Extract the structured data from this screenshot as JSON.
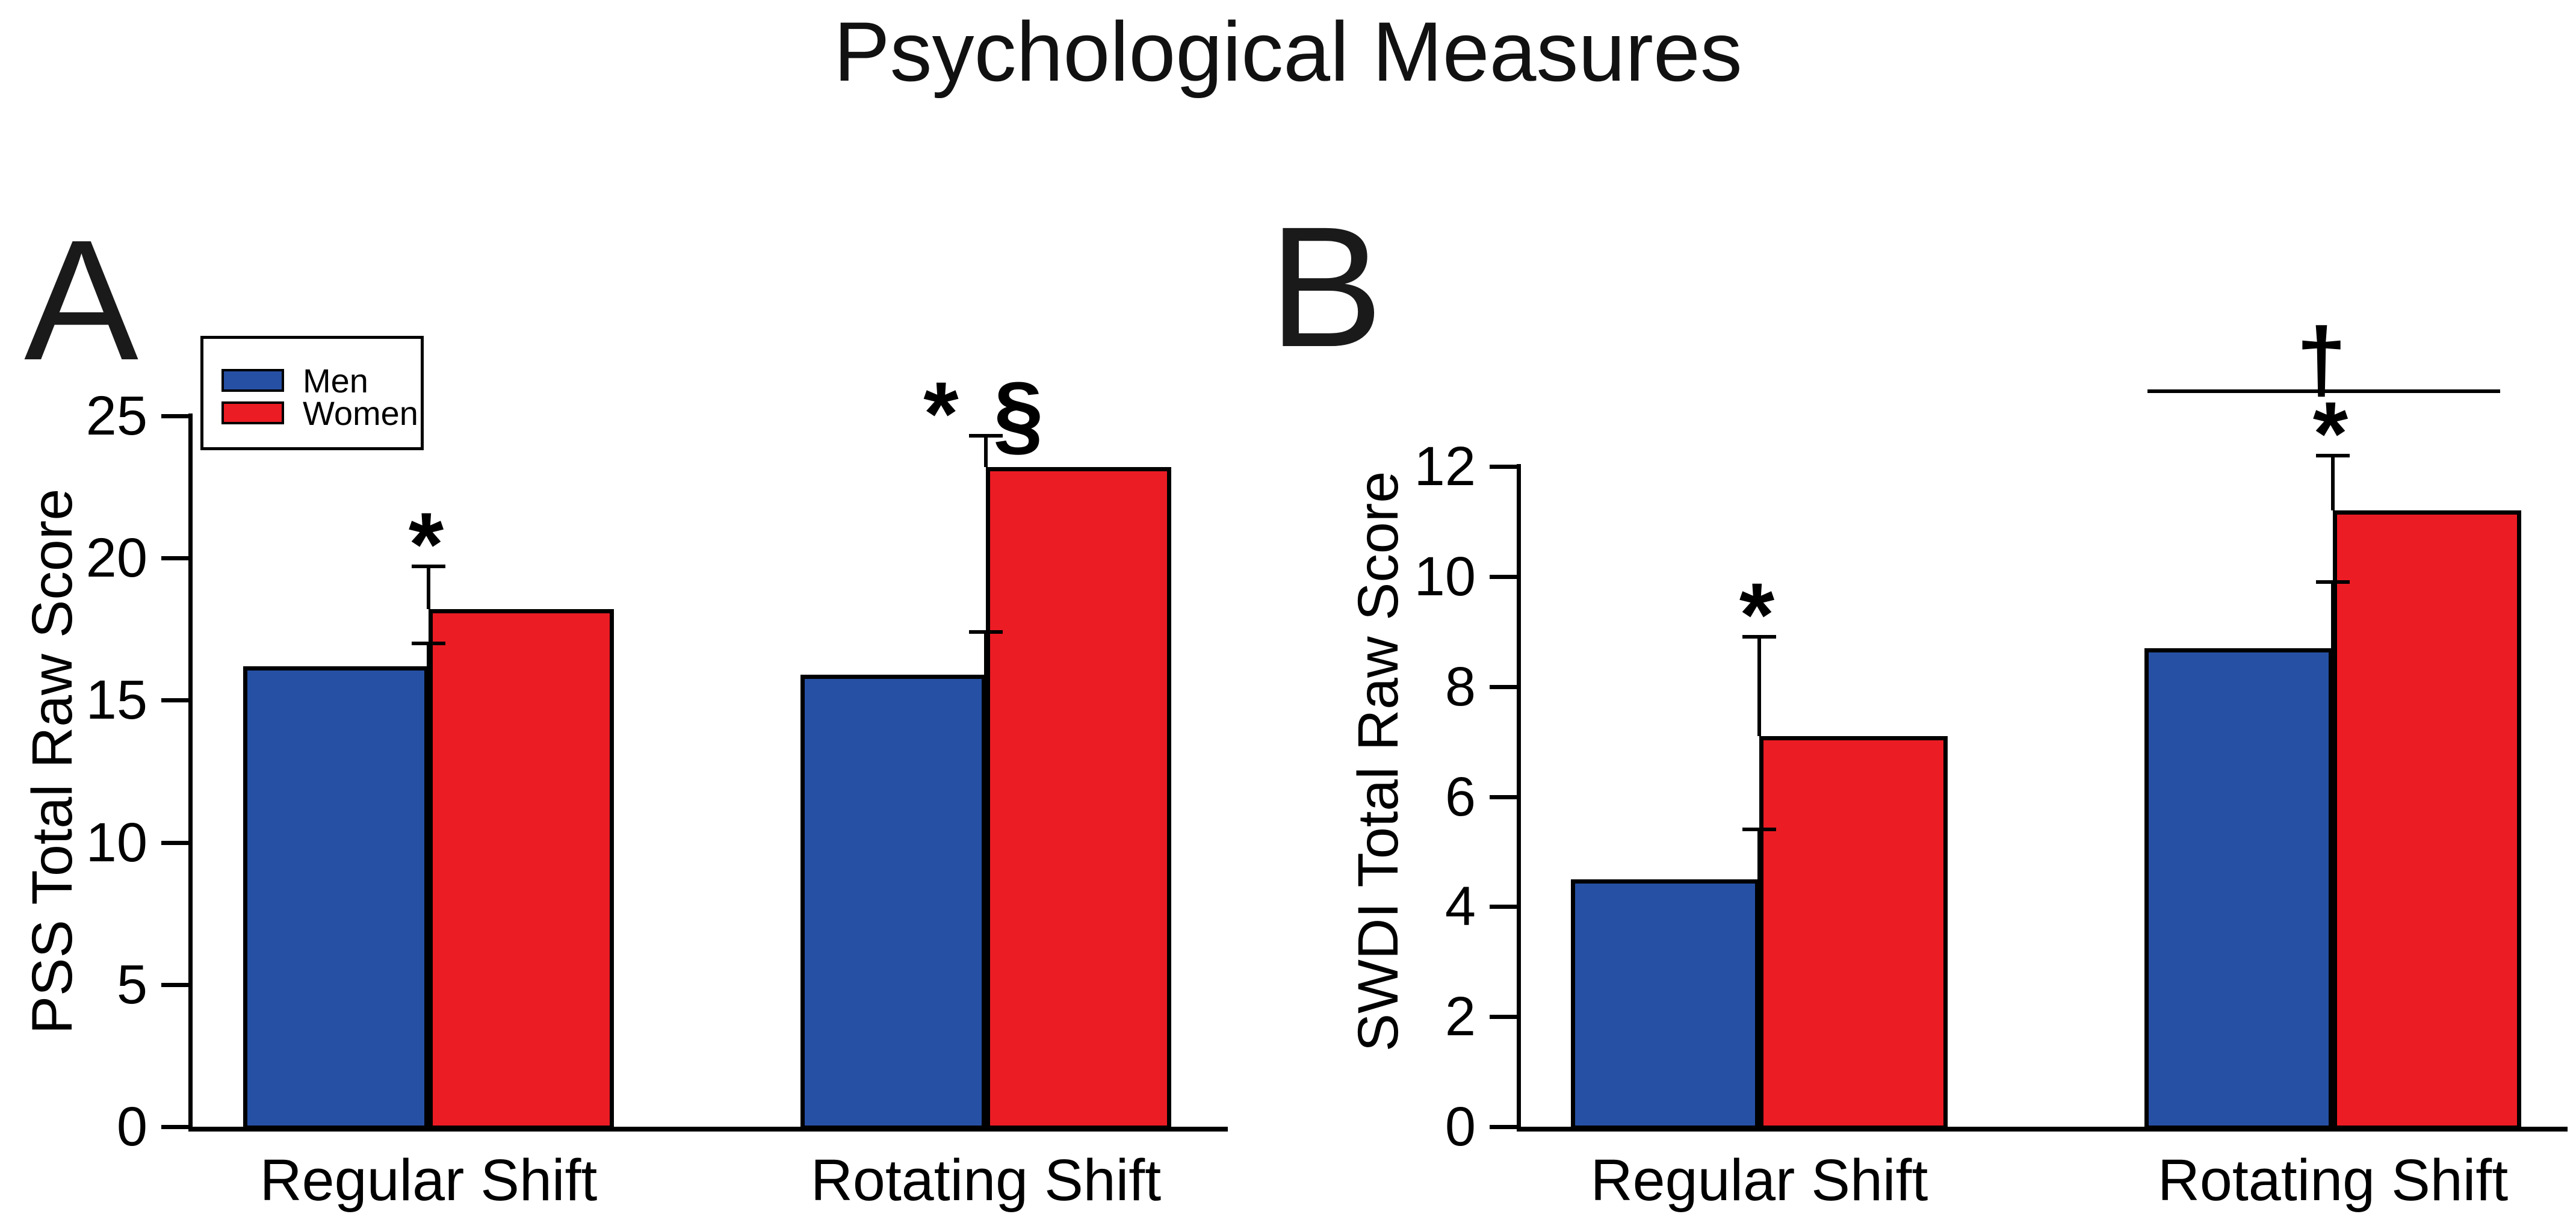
{
  "figure_title": "Psychological Measures",
  "legend": {
    "items": [
      {
        "label": "Men",
        "color": "#2650A4"
      },
      {
        "label": "Women",
        "color": "#EC1C24"
      }
    ]
  },
  "colors": {
    "men": "#2650A4",
    "women": "#EC1C24",
    "axis": "#000000"
  },
  "chart_data": [
    {
      "type": "bar",
      "panel_label": "A",
      "ylabel": "PSS Total Raw Score",
      "xlabel": "",
      "categories": [
        "Regular Shift",
        "Rotating Shift"
      ],
      "series": [
        {
          "name": "Men",
          "color": "#2650A4",
          "values": [
            16.2,
            15.9
          ],
          "errors": [
            0.8,
            1.5
          ]
        },
        {
          "name": "Women",
          "color": "#EC1C24",
          "values": [
            18.2,
            23.2
          ],
          "errors": [
            1.5,
            1.1
          ],
          "annotations": [
            "*",
            "* §"
          ]
        }
      ],
      "ylim": [
        0,
        25
      ],
      "yticks": [
        0,
        5,
        10,
        15,
        20,
        25
      ],
      "grid": false,
      "legend_position": "top-left"
    },
    {
      "type": "bar",
      "panel_label": "B",
      "ylabel": "SWDI Total Raw Score",
      "xlabel": "",
      "categories": [
        "Regular Shift",
        "Rotating Shift"
      ],
      "series": [
        {
          "name": "Men",
          "color": "#2650A4",
          "values": [
            4.5,
            8.7
          ],
          "errors": [
            0.9,
            1.2
          ]
        },
        {
          "name": "Women",
          "color": "#EC1C24",
          "values": [
            7.1,
            11.2
          ],
          "errors": [
            1.8,
            1.0
          ],
          "annotations": [
            "*",
            "*"
          ]
        }
      ],
      "ylim": [
        0,
        12
      ],
      "yticks": [
        0,
        2,
        4,
        6,
        8,
        10,
        12
      ],
      "grid": false,
      "extra_annotation": {
        "symbol": "†",
        "category": "Rotating Shift",
        "y_value": 13.4,
        "style": "bracket-line"
      }
    }
  ]
}
